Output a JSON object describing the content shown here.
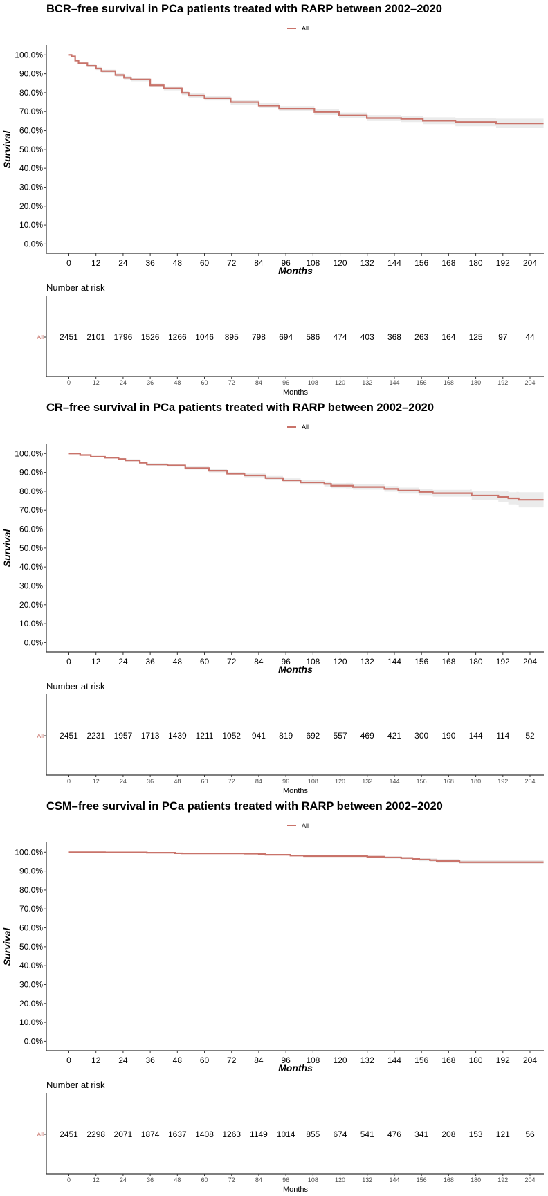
{
  "colors": {
    "line": "#C9736A",
    "band": "#EBEBEB",
    "axis": "#333333"
  },
  "chart_data": [
    {
      "type": "line",
      "title": "BCR–free survival in PCa patients treated with RARP between 2002–2020",
      "legend": {
        "position": "top",
        "entries": [
          "All"
        ]
      },
      "xlabel": "Months",
      "ylabel": "Survival",
      "xlim": [
        -5,
        210
      ],
      "ylim": [
        -3,
        105
      ],
      "x_ticks": [
        "0",
        "12",
        "24",
        "36",
        "48",
        "60",
        "72",
        "84",
        "96",
        "108",
        "120",
        "132",
        "144",
        "156",
        "168",
        "180",
        "192",
        "204"
      ],
      "y_ticks": [
        "0.0%",
        "10.0%",
        "20.0%",
        "30.0%",
        "40.0%",
        "50.0%",
        "60.0%",
        "70.0%",
        "80.0%",
        "90.0%",
        "100.0%"
      ],
      "series": [
        {
          "name": "All",
          "x": [
            0,
            1.2,
            2.8,
            4.3,
            8.2,
            12,
            14.4,
            20.6,
            24.4,
            27.5,
            36,
            42,
            50,
            53,
            60,
            71.6,
            84,
            93,
            108.6,
            119.5,
            131.8,
            147,
            156.6,
            170.5,
            171,
            188,
            189,
            210
          ],
          "y": [
            100,
            99.2,
            97,
            95.6,
            94.2,
            92.8,
            91.4,
            89.3,
            87.9,
            87,
            83.9,
            82.3,
            79.9,
            78.5,
            77.1,
            75,
            73.2,
            71.5,
            69.8,
            68,
            66.6,
            66.2,
            65.2,
            65.2,
            64.5,
            64.5,
            63.8,
            63.8
          ],
          "ci_halfwidth": [
            0,
            0.3,
            0.5,
            0.6,
            0.7,
            0.8,
            0.8,
            0.9,
            0.9,
            1,
            1,
            1.1,
            1.1,
            1.2,
            1.2,
            1.3,
            1.3,
            1.4,
            1.5,
            1.5,
            1.6,
            1.7,
            1.8,
            1.9,
            2.2,
            2.2,
            2.5,
            2.5
          ]
        }
      ],
      "risk_table": {
        "title": "Number at risk",
        "group": "All",
        "xlabel": "Months",
        "values": [
          "2451",
          "2101",
          "1796",
          "1526",
          "1266",
          "1046",
          "895",
          "798",
          "694",
          "586",
          "474",
          "403",
          "368",
          "263",
          "164",
          "125",
          "97",
          "44"
        ]
      }
    },
    {
      "type": "line",
      "title": "CR–free survival in PCa patients treated with RARP between 2002–2020",
      "legend": {
        "position": "top",
        "entries": [
          "All"
        ]
      },
      "xlabel": "Months",
      "ylabel": "Survival",
      "xlim": [
        -5,
        210
      ],
      "ylim": [
        -3,
        105
      ],
      "x_ticks": [
        "0",
        "12",
        "24",
        "36",
        "48",
        "60",
        "72",
        "84",
        "96",
        "108",
        "120",
        "132",
        "144",
        "156",
        "168",
        "180",
        "192",
        "204"
      ],
      "y_ticks": [
        "0.0%",
        "10.0%",
        "20.0%",
        "30.0%",
        "40.0%",
        "50.0%",
        "60.0%",
        "70.0%",
        "80.0%",
        "90.0%",
        "100.0%"
      ],
      "series": [
        {
          "name": "All",
          "x": [
            0,
            2.3,
            5,
            9.7,
            16,
            22,
            25,
            31.4,
            34.5,
            43.7,
            51.5,
            62,
            70,
            77.7,
            87,
            94.7,
            102.5,
            113,
            116,
            122.6,
            125.7,
            139.6,
            145.7,
            155,
            161,
            177.4,
            178.2,
            189,
            190,
            193.7,
            194.4,
            198,
            199,
            210
          ],
          "y": [
            100,
            100,
            99.2,
            98.3,
            97.8,
            97.1,
            96.4,
            95.1,
            94.2,
            93.7,
            92.3,
            90.9,
            89.3,
            88.4,
            87,
            85.8,
            84.7,
            83.9,
            83,
            83,
            82.3,
            81.3,
            80.4,
            79.7,
            79,
            79,
            77.8,
            77.8,
            77.1,
            77.1,
            76.3,
            76.3,
            75.5,
            75.5
          ],
          "ci_halfwidth": [
            0,
            0,
            0.3,
            0.4,
            0.5,
            0.5,
            0.6,
            0.6,
            0.7,
            0.7,
            0.8,
            0.9,
            0.9,
            1,
            1.1,
            1.1,
            1.2,
            1.3,
            1.3,
            1.4,
            1.4,
            1.5,
            1.6,
            1.7,
            1.8,
            2,
            2.4,
            2.6,
            2.8,
            2.9,
            3.2,
            3.4,
            4,
            4
          ]
        }
      ],
      "risk_table": {
        "title": "Number at risk",
        "group": "All",
        "xlabel": "Months",
        "values": [
          "2451",
          "2231",
          "1957",
          "1713",
          "1439",
          "1211",
          "1052",
          "941",
          "819",
          "692",
          "557",
          "469",
          "421",
          "300",
          "190",
          "144",
          "114",
          "52"
        ]
      }
    },
    {
      "type": "line",
      "title": "CSM–free survival in PCa patients treated with RARP between 2002–2020",
      "legend": {
        "position": "top",
        "entries": [
          "All"
        ]
      },
      "xlabel": "Months",
      "ylabel": "Survival",
      "xlim": [
        -5,
        210
      ],
      "ylim": [
        -3,
        105
      ],
      "x_ticks": [
        "0",
        "12",
        "24",
        "36",
        "48",
        "60",
        "72",
        "84",
        "96",
        "108",
        "120",
        "132",
        "144",
        "156",
        "168",
        "180",
        "192",
        "204"
      ],
      "y_ticks": [
        "0.0%",
        "10.0%",
        "20.0%",
        "30.0%",
        "40.0%",
        "50.0%",
        "60.0%",
        "70.0%",
        "80.0%",
        "90.0%",
        "100.0%"
      ],
      "series": [
        {
          "name": "All",
          "x": [
            0,
            16,
            34.5,
            47,
            50,
            77.7,
            84,
            87,
            96,
            98,
            104,
            132,
            139.6,
            147,
            152,
            155,
            159.7,
            162.7,
            172,
            172.8,
            210
          ],
          "y": [
            100,
            99.9,
            99.7,
            99.4,
            99.3,
            99.2,
            99,
            98.6,
            98.6,
            98.2,
            97.9,
            97.6,
            97.2,
            96.9,
            96.5,
            96.1,
            95.8,
            95.4,
            95.4,
            94.7,
            94.7
          ],
          "ci_halfwidth": [
            0,
            0.1,
            0.2,
            0.2,
            0.2,
            0.3,
            0.3,
            0.3,
            0.4,
            0.4,
            0.4,
            0.5,
            0.6,
            0.6,
            0.7,
            0.8,
            0.9,
            1,
            1,
            1.2,
            1.2
          ]
        }
      ],
      "risk_table": {
        "title": "Number at risk",
        "group": "All",
        "xlabel": "Months",
        "values": [
          "2451",
          "2298",
          "2071",
          "1874",
          "1637",
          "1408",
          "1263",
          "1149",
          "1014",
          "855",
          "674",
          "541",
          "476",
          "341",
          "208",
          "153",
          "121",
          "56"
        ]
      }
    }
  ]
}
